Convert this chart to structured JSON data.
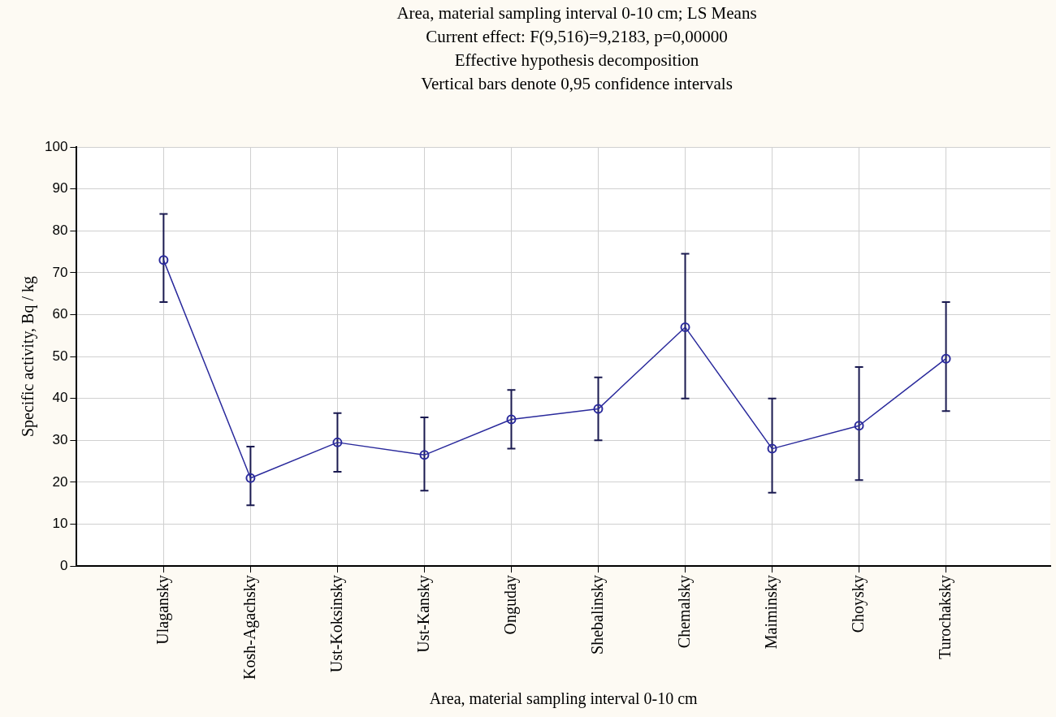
{
  "chart_data": {
    "type": "line",
    "title": "Area, material sampling interval 0-10 cm; LS Means",
    "subtitle": "Current effect: F(9,516)=9,2183, p=0,00000",
    "annotations": [
      "Effective hypothesis decomposition",
      "Vertical bars denote 0,95 confidence intervals"
    ],
    "xlabel": "Area, material sampling interval 0-10 cm",
    "ylabel": "Specific activity, Bq / kg",
    "categories": [
      "Ulagansky",
      "Kosh-Agachsky",
      "Ust-Koksinsky",
      "Ust-Kansky",
      "Onguday",
      "Shebalinsky",
      "Chemalsky",
      "Maiminsky",
      "Choysky",
      "Turochaksky"
    ],
    "series": [
      {
        "color": "#2a2a9c",
        "values": [
          73,
          21,
          29.5,
          26.5,
          35,
          37.5,
          57,
          28,
          33.5,
          49.5
        ],
        "errors": [
          [
            63,
            84
          ],
          [
            14.5,
            28.5
          ],
          [
            22.5,
            36.5
          ],
          [
            18,
            35.5
          ],
          [
            28,
            42
          ],
          [
            30,
            45
          ],
          [
            40,
            74.5
          ],
          [
            17.5,
            40
          ],
          [
            20.5,
            47.5
          ],
          [
            37,
            63
          ]
        ]
      }
    ],
    "ylim": [
      0,
      100
    ],
    "yticks": [
      0,
      10,
      20,
      30,
      40,
      50,
      60,
      70,
      80,
      90,
      100
    ],
    "grid": true,
    "legend": false,
    "marker": "circle",
    "line_style": "solid"
  }
}
